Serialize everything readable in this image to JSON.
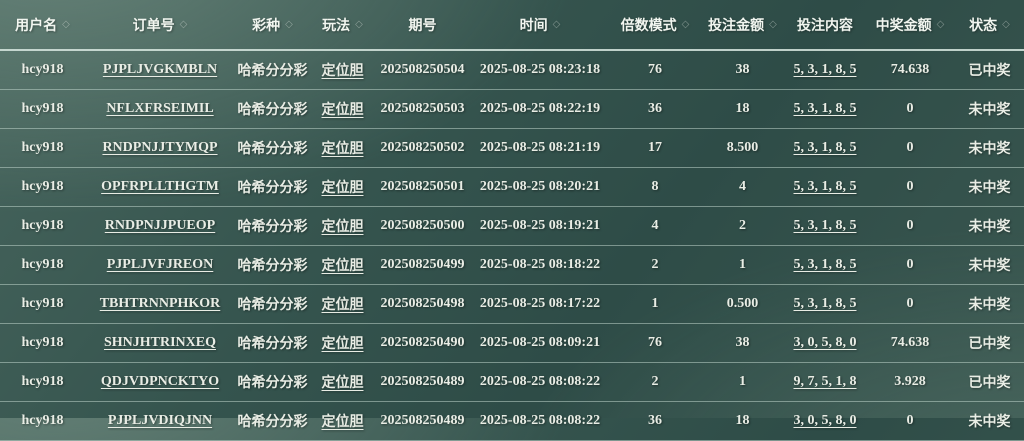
{
  "colors": {
    "background_top": "#47655d",
    "background_mid": "#2e4c47",
    "background_bottom": "#3a5750",
    "header_text": "#f2f6f0",
    "cell_text": "#e9ede5",
    "divider": "#bcd2c8"
  },
  "icons": {
    "sort_glyph": "◇"
  },
  "table": {
    "columns": [
      {
        "name": "username",
        "label": "用户名",
        "sortable": true,
        "link": false
      },
      {
        "name": "order-no",
        "label": "订单号",
        "sortable": true,
        "link": true
      },
      {
        "name": "lottery-type",
        "label": "彩种",
        "sortable": true,
        "link": false
      },
      {
        "name": "play-method",
        "label": "玩法",
        "sortable": true,
        "link": true
      },
      {
        "name": "period-no",
        "label": "期号",
        "sortable": false,
        "link": false
      },
      {
        "name": "time",
        "label": "时间",
        "sortable": true,
        "link": false
      },
      {
        "name": "multiplier-mode",
        "label": "倍数模式",
        "sortable": true,
        "link": false
      },
      {
        "name": "bet-amount",
        "label": "投注金额",
        "sortable": true,
        "link": false
      },
      {
        "name": "bet-content",
        "label": "投注内容",
        "sortable": false,
        "link": true
      },
      {
        "name": "win-amount",
        "label": "中奖金额",
        "sortable": true,
        "link": false
      },
      {
        "name": "status",
        "label": "状态",
        "sortable": true,
        "link": false
      }
    ],
    "rows": [
      [
        "hcy918",
        "PJPLJVGKMBLN",
        "哈希分分彩",
        "定位胆",
        "202508250504",
        "2025-08-25 08:23:18",
        "76",
        "38",
        "5, 3, 1, 8, 5",
        "74.638",
        "已中奖"
      ],
      [
        "hcy918",
        "NFLXFRSEIMIL",
        "哈希分分彩",
        "定位胆",
        "202508250503",
        "2025-08-25 08:22:19",
        "36",
        "18",
        "5, 3, 1, 8, 5",
        "0",
        "未中奖"
      ],
      [
        "hcy918",
        "RNDPNJJTYMQP",
        "哈希分分彩",
        "定位胆",
        "202508250502",
        "2025-08-25 08:21:19",
        "17",
        "8.500",
        "5, 3, 1, 8, 5",
        "0",
        "未中奖"
      ],
      [
        "hcy918",
        "OPFRPLLTHGTM",
        "哈希分分彩",
        "定位胆",
        "202508250501",
        "2025-08-25 08:20:21",
        "8",
        "4",
        "5, 3, 1, 8, 5",
        "0",
        "未中奖"
      ],
      [
        "hcy918",
        "RNDPNJJPUEOP",
        "哈希分分彩",
        "定位胆",
        "202508250500",
        "2025-08-25 08:19:21",
        "4",
        "2",
        "5, 3, 1, 8, 5",
        "0",
        "未中奖"
      ],
      [
        "hcy918",
        "PJPLJVFJREON",
        "哈希分分彩",
        "定位胆",
        "202508250499",
        "2025-08-25 08:18:22",
        "2",
        "1",
        "5, 3, 1, 8, 5",
        "0",
        "未中奖"
      ],
      [
        "hcy918",
        "TBHTRNNPHKOR",
        "哈希分分彩",
        "定位胆",
        "202508250498",
        "2025-08-25 08:17:22",
        "1",
        "0.500",
        "5, 3, 1, 8, 5",
        "0",
        "未中奖"
      ],
      [
        "hcy918",
        "SHNJHTRINXEQ",
        "哈希分分彩",
        "定位胆",
        "202508250490",
        "2025-08-25 08:09:21",
        "76",
        "38",
        "3, 0, 5, 8, 0",
        "74.638",
        "已中奖"
      ],
      [
        "hcy918",
        "QDJVDPNCKTYO",
        "哈希分分彩",
        "定位胆",
        "202508250489",
        "2025-08-25 08:08:22",
        "2",
        "1",
        "9, 7, 5, 1, 8",
        "3.928",
        "已中奖"
      ],
      [
        "hcy918",
        "PJPLJVDIQJNN",
        "哈希分分彩",
        "定位胆",
        "202508250489",
        "2025-08-25 08:08:22",
        "36",
        "18",
        "3, 0, 5, 8, 0",
        "0",
        "未中奖"
      ]
    ]
  }
}
